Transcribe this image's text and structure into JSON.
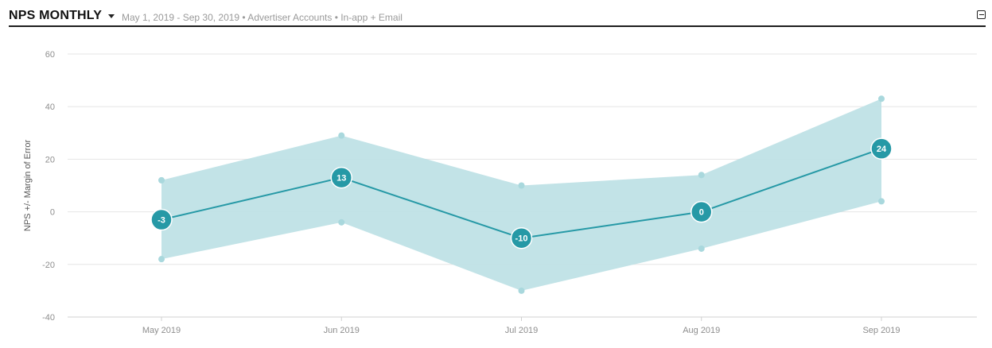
{
  "header": {
    "title": "NPS MONTHLY",
    "subtitle": "May 1, 2019 - Sep 30, 2019 • Advertiser Accounts • In-app + Email",
    "caret_icon": "caret-down-icon",
    "collapse_icon": "minus-square-icon"
  },
  "colors": {
    "line": "#2699a6",
    "band": "#bfe2e6",
    "band_marker": "#a9d8dd",
    "grid": "#e6e6e6",
    "axis": "#d0d0d0"
  },
  "chart_data": {
    "type": "line",
    "categories": [
      "May 2019",
      "Jun 2019",
      "Jul 2019",
      "Aug 2019",
      "Sep 2019"
    ],
    "series": [
      {
        "values": [
          -3,
          13,
          -10,
          0,
          24
        ]
      }
    ],
    "band": {
      "upper": [
        12,
        29,
        10,
        14,
        43
      ],
      "lower": [
        -18,
        -4,
        -30,
        -14,
        4
      ]
    },
    "point_labels": [
      "-3",
      "13",
      "-10",
      "0",
      "24"
    ],
    "yticks": [
      60,
      40,
      20,
      0,
      -20,
      -40
    ],
    "ylim": [
      -40,
      60
    ],
    "ylabel": "NPS +/- Margin of Error",
    "xlabel": "",
    "grid": true,
    "legend": "none"
  }
}
